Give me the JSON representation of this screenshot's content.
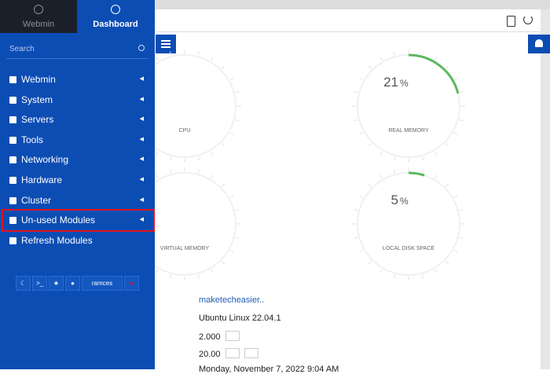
{
  "sidebar": {
    "tabs": [
      "Webmin",
      "Dashboard"
    ],
    "search": "Search",
    "menu": [
      "Webmin",
      "System",
      "Servers",
      "Tools",
      "Networking",
      "Hardware",
      "Cluster",
      "Un-used Modules",
      "Refresh Modules"
    ],
    "user": "ramces"
  },
  "gauges": [
    {
      "label": "CPU"
    },
    {
      "label": "REAL MEMORY",
      "value": 21,
      "unit": "%"
    },
    {
      "label": "VIRTUAL MEMORY"
    },
    {
      "label": "LOCAL DISK SPACE",
      "value": 5,
      "unit": "%"
    }
  ],
  "info": {
    "hostname": "maketecheasier..",
    "os": "Ubuntu Linux 22.04.1",
    "load": "2.000",
    "uptime": "20.00",
    "time": "Monday, November 7, 2022 9:04 AM"
  }
}
